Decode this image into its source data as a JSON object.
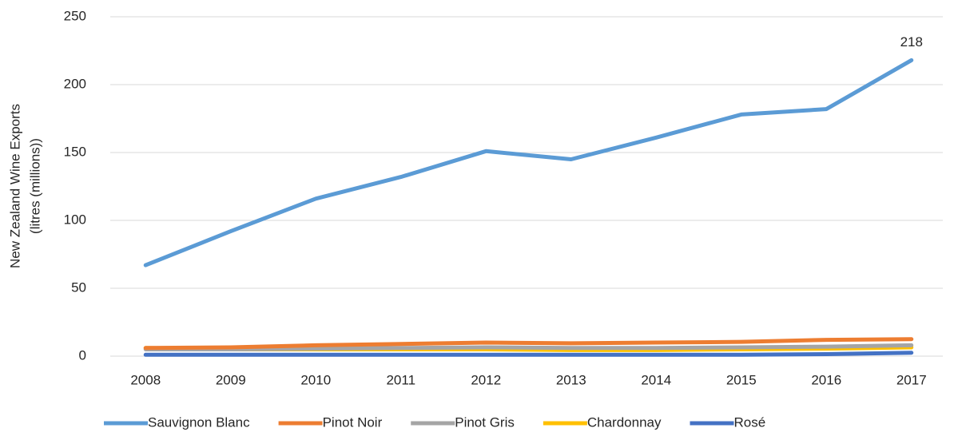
{
  "chart_data": {
    "type": "line",
    "y_label": [
      "New Zealand Wine Exports",
      "(litres (millions))"
    ],
    "categories": [
      "2008",
      "2009",
      "2010",
      "2011",
      "2012",
      "2013",
      "2014",
      "2015",
      "2016",
      "2017"
    ],
    "series": [
      {
        "name": "Sauvignon Blanc",
        "color": "#5b9bd5",
        "values": [
          67,
          92,
          116,
          132,
          151,
          145,
          161,
          178,
          182,
          218
        ]
      },
      {
        "name": "Pinot Noir",
        "color": "#ed7d31",
        "values": [
          6,
          6.5,
          8,
          9,
          10,
          9.5,
          10,
          10.5,
          12,
          12.5
        ]
      },
      {
        "name": "Pinot Gris",
        "color": "#a5a5a5",
        "values": [
          5,
          5,
          5.5,
          6,
          6.5,
          6,
          6,
          6.5,
          7,
          8
        ]
      },
      {
        "name": "Chardonnay",
        "color": "#ffc000",
        "values": [
          6,
          5,
          5,
          5,
          5,
          4.5,
          4.5,
          5,
          5.5,
          6.5
        ]
      },
      {
        "name": "Rosé",
        "color": "#4472c4",
        "values": [
          1,
          1,
          1,
          1,
          1,
          1,
          1,
          1,
          1.5,
          2.5
        ]
      }
    ],
    "ylim": [
      0,
      250
    ],
    "yticks": [
      0,
      50,
      100,
      150,
      200,
      250
    ],
    "grid": true,
    "legend": "bottom"
  }
}
